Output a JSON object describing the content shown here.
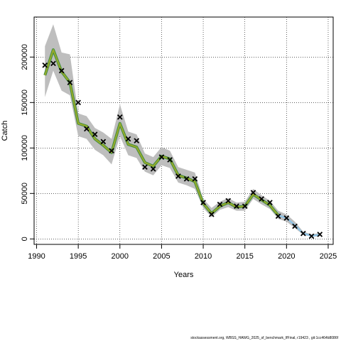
{
  "chart_data": {
    "type": "line",
    "title": "",
    "xlabel": "Years",
    "ylabel": "Catch",
    "xlim": [
      1989.7,
      2025.6
    ],
    "ylim": [
      -6000,
      244000
    ],
    "x_ticks": [
      1990,
      1995,
      2000,
      2005,
      2010,
      2015,
      2020,
      2025
    ],
    "x_tick_labels": [
      "1990",
      "1995",
      "2000",
      "2005",
      "2010",
      "2015",
      "2020",
      "2025"
    ],
    "y_ticks": [
      0,
      50000,
      100000,
      150000,
      200000
    ],
    "y_tick_labels": [
      "0",
      "50000",
      "100000",
      "150000",
      "200000"
    ],
    "grid": true,
    "colors": {
      "band": "#bebebe",
      "fit_line": "#9aaa2a",
      "fit_outline": "#3f8f3f",
      "projection_line": "#8ec3e6",
      "observed_marker": "#000000"
    },
    "years": [
      1991,
      1992,
      1993,
      1994,
      1995,
      1996,
      1997,
      1998,
      1999,
      2000,
      2001,
      2002,
      2003,
      2004,
      2005,
      2006,
      2007,
      2008,
      2009,
      2010,
      2011,
      2012,
      2013,
      2014,
      2015,
      2016,
      2017,
      2018,
      2019,
      2020,
      2021,
      2022,
      2023,
      2024
    ],
    "estimate": [
      180000,
      208000,
      184000,
      172000,
      127000,
      124000,
      110000,
      103000,
      95000,
      127000,
      104000,
      101000,
      84000,
      80000,
      91000,
      88000,
      70000,
      67000,
      63000,
      39000,
      28000,
      36000,
      40000,
      35000,
      36000,
      49000,
      43000,
      37000,
      26000,
      23000,
      15000,
      6000,
      3500,
      4500
    ],
    "upper": [
      212000,
      236000,
      205000,
      203000,
      138000,
      135000,
      122000,
      117000,
      110000,
      148000,
      118000,
      115000,
      94000,
      90000,
      101000,
      97000,
      79000,
      76000,
      73000,
      44000,
      34000,
      41000,
      45000,
      40000,
      41000,
      55000,
      48000,
      42000,
      31000,
      27000,
      19000,
      8000,
      5000,
      6500
    ],
    "lower": [
      156000,
      185000,
      163000,
      158000,
      113000,
      110000,
      98000,
      92000,
      82000,
      113000,
      92000,
      89000,
      74000,
      70000,
      81000,
      78000,
      62000,
      59000,
      55000,
      34000,
      24000,
      32000,
      35000,
      31000,
      31000,
      44000,
      38000,
      33000,
      22000,
      19000,
      12000,
      4500,
      2500,
      3000
    ],
    "projection_from_year": 2019,
    "observed": {
      "x": [
        1991,
        1992,
        1993,
        1994,
        1995,
        1996,
        1997,
        1998,
        1999,
        2000,
        2001,
        2002,
        2003,
        2004,
        2005,
        2006,
        2007,
        2008,
        2009,
        2010,
        2011,
        2012,
        2013,
        2014,
        2015,
        2016,
        2017,
        2018,
        2019,
        2020,
        2021,
        2022,
        2023,
        2024
      ],
      "y": [
        191000,
        193000,
        185000,
        172000,
        150000,
        121000,
        115000,
        107000,
        97000,
        134000,
        110000,
        108000,
        79000,
        77000,
        90000,
        87000,
        69000,
        66000,
        66000,
        40000,
        27000,
        38000,
        42000,
        36000,
        36000,
        51000,
        44000,
        40000,
        25000,
        23000,
        14000,
        6000,
        3000,
        5000
      ]
    }
  },
  "footer": {
    "text": "stockassessment.org, WBSS_HAWG_2025_sf_benchmark_IfFinal, r19423 , git:1cc464b8086f"
  }
}
